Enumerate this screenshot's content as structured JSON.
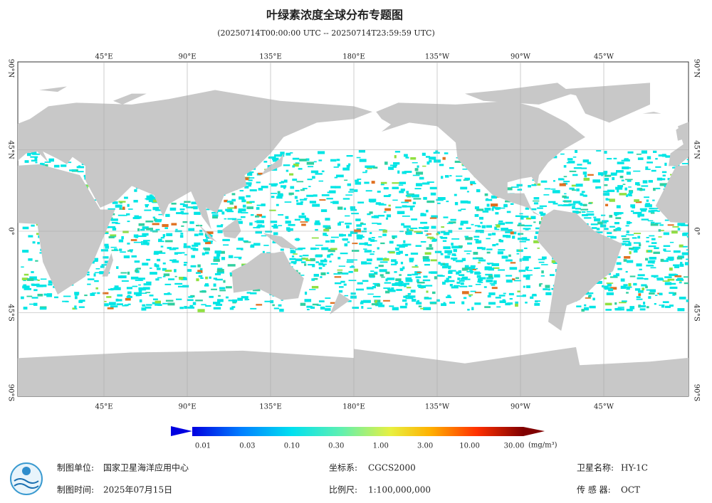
{
  "title": "叶绿素浓度全球分布专题图",
  "subtitle": "(20250714T00:00:00 UTC -- 20250714T23:59:59 UTC)",
  "map": {
    "lon_labels": [
      "45°E",
      "90°E",
      "135°E",
      "180°E",
      "135°W",
      "90°W",
      "45°W"
    ],
    "lat_labels": [
      "90°N",
      "45°N",
      "0°",
      "45°S",
      "90°S"
    ]
  },
  "colorbar": {
    "labels": [
      "0.01",
      "0.03",
      "0.10",
      "0.30",
      "1.00",
      "3.00",
      "10.00",
      "30.00"
    ],
    "unit": "(mg/m³)"
  },
  "footer": {
    "unit_label": "制图单位:",
    "unit": "国家卫星海洋应用中心",
    "time_label": "制图时间:",
    "time": "2025年07月15日",
    "crs_label": "坐标系:",
    "crs": "CGCS2000",
    "scale_label": "比例尺:",
    "scale": "1:100,000,000",
    "satellite_label": "卫星名称:",
    "satellite": "HY-1C",
    "sensor_label": "传 感 器:",
    "sensor": "OCT"
  }
}
